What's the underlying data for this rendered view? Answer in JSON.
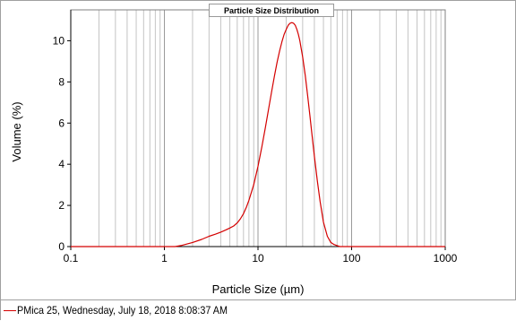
{
  "chart_data": {
    "type": "line",
    "title": "Particle Size Distribution",
    "xlabel": "Particle Size (µm)",
    "ylabel": "Volume (%)",
    "xscale": "log",
    "xlim": [
      0.1,
      1000
    ],
    "ylim": [
      0,
      11.5
    ],
    "x_ticks": [
      "0.1",
      "1",
      "10",
      "100",
      "1000"
    ],
    "y_ticks": [
      "0",
      "2",
      "4",
      "6",
      "8",
      "10"
    ],
    "grid": "vertical log grid",
    "series": [
      {
        "name": "PMica 25, Wednesday, July 18, 2018 8:08:37 AM",
        "color": "#d40000",
        "x": [
          0.1,
          0.5,
          1.0,
          1.3,
          1.5,
          2.0,
          2.5,
          3.0,
          3.5,
          4.0,
          4.5,
          5.0,
          5.5,
          6.0,
          6.5,
          7.0,
          7.5,
          8.0,
          9.0,
          10.0,
          11.0,
          12.0,
          13.0,
          14.0,
          15.0,
          16.0,
          17.0,
          18.0,
          19.0,
          20.0,
          21.0,
          22.0,
          23.0,
          24.0,
          25.0,
          26.0,
          27.0,
          28.0,
          29.0,
          30.0,
          32.0,
          34.0,
          36.0,
          38.0,
          40.0,
          43.0,
          46.0,
          50.0,
          55.0,
          60.0,
          65.0,
          70.0,
          75.0,
          80.0,
          90.0,
          100.0,
          200.0,
          500.0,
          1000.0
        ],
        "y": [
          0.0,
          0.0,
          0.0,
          0.0,
          0.05,
          0.2,
          0.35,
          0.5,
          0.6,
          0.7,
          0.8,
          0.9,
          1.0,
          1.15,
          1.35,
          1.6,
          1.9,
          2.25,
          3.0,
          3.9,
          4.85,
          5.8,
          6.7,
          7.55,
          8.3,
          8.95,
          9.5,
          9.95,
          10.3,
          10.55,
          10.75,
          10.85,
          10.88,
          10.85,
          10.75,
          10.55,
          10.3,
          10.0,
          9.6,
          9.2,
          8.3,
          7.3,
          6.3,
          5.3,
          4.4,
          3.2,
          2.2,
          1.2,
          0.5,
          0.2,
          0.1,
          0.05,
          0.0,
          0.0,
          0.0,
          0.0,
          0.0,
          0.0,
          0.0
        ]
      }
    ]
  }
}
